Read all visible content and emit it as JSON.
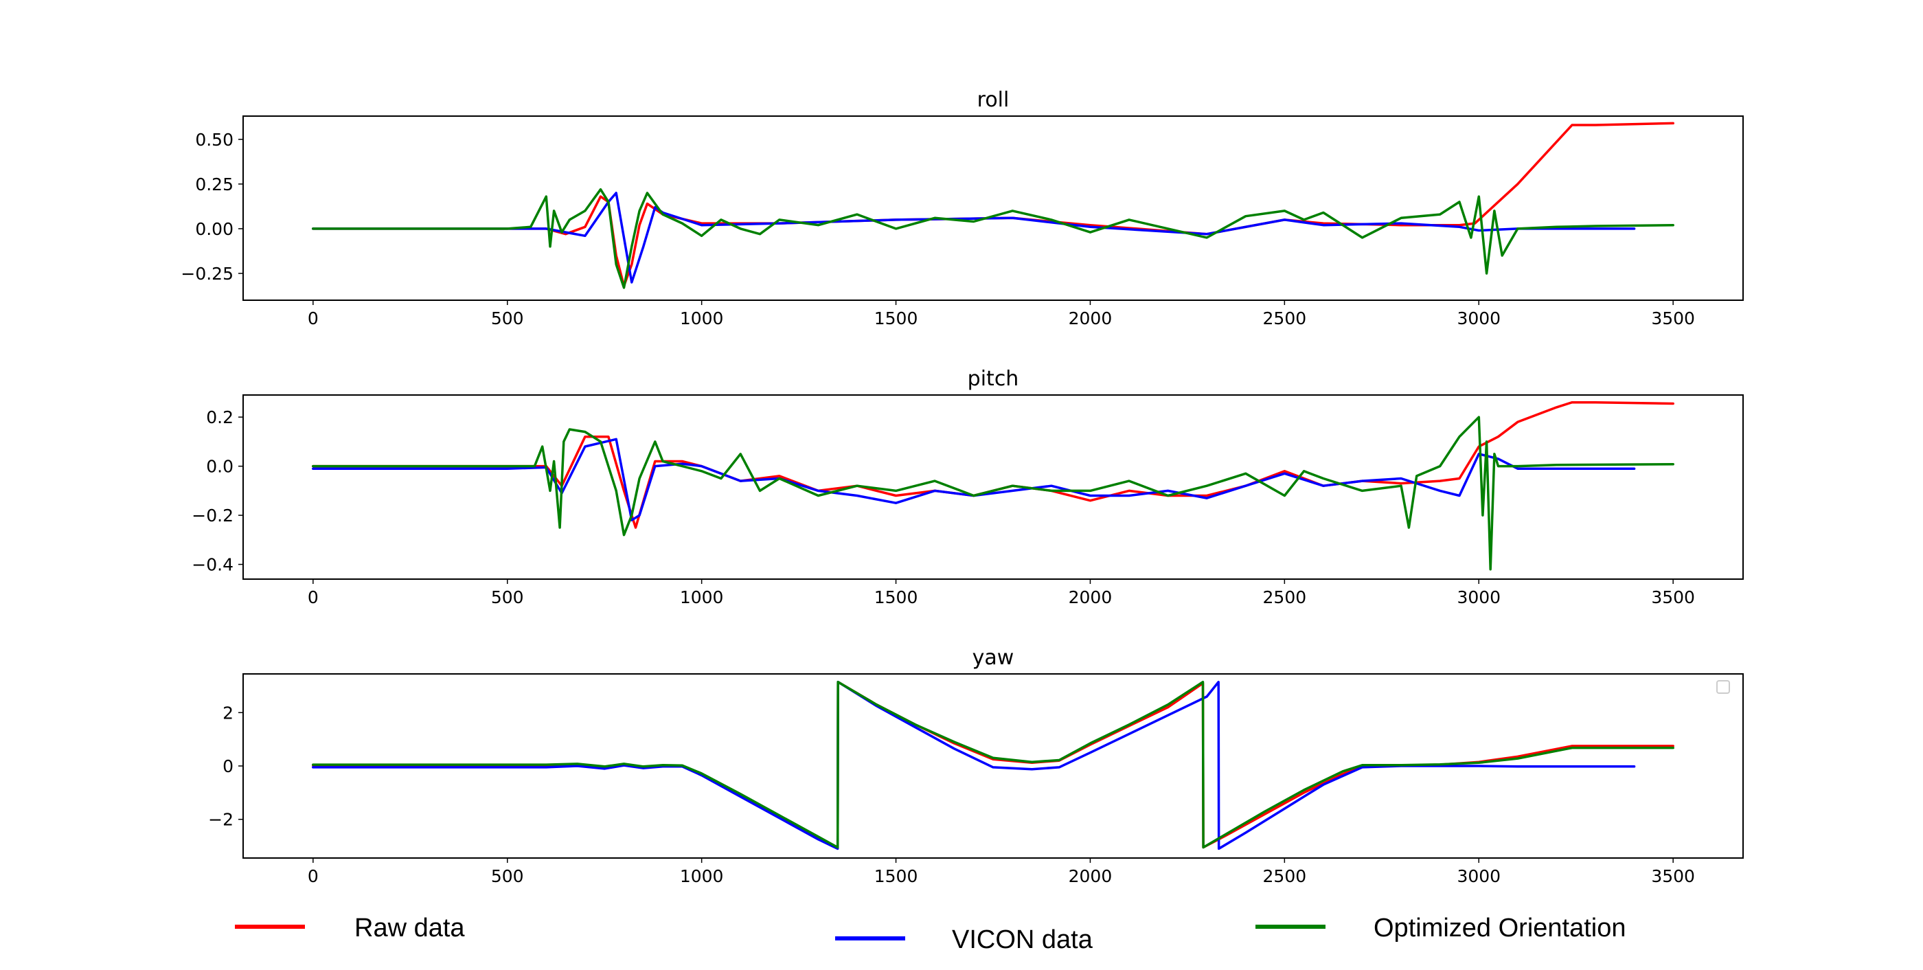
{
  "chart_data": [
    {
      "type": "line",
      "title": "roll",
      "xlim": [
        -180,
        3680
      ],
      "ylim": [
        -0.4,
        0.63
      ],
      "xticks": [
        0,
        500,
        1000,
        1500,
        2000,
        2500,
        3000,
        3500
      ],
      "yticks": [
        0.5,
        0.25,
        0.0,
        -0.25
      ],
      "ytick_labels": [
        "0.50",
        "0.25",
        "0.00",
        "−0.25"
      ],
      "series": [
        {
          "name": "Raw data",
          "color": "#ff0000",
          "x": [
            0,
            500,
            600,
            650,
            700,
            740,
            760,
            780,
            800,
            820,
            840,
            860,
            900,
            1000,
            1200,
            1500,
            1800,
            2000,
            2300,
            2500,
            2600,
            2800,
            2950,
            2990,
            3100,
            3240,
            3300,
            3500
          ],
          "y": [
            0,
            0,
            0,
            -0.03,
            0.01,
            0.18,
            0.15,
            -0.15,
            -0.32,
            -0.2,
            0.02,
            0.14,
            0.08,
            0.03,
            0.03,
            0.05,
            0.06,
            0.02,
            -0.03,
            0.05,
            0.03,
            0.02,
            0.02,
            0.03,
            0.25,
            0.58,
            0.58,
            0.59
          ]
        },
        {
          "name": "VICON data",
          "color": "#0000ff",
          "x": [
            0,
            500,
            600,
            650,
            700,
            760,
            780,
            800,
            820,
            850,
            880,
            900,
            1000,
            1200,
            1500,
            1800,
            2000,
            2300,
            2500,
            2600,
            2800,
            2950,
            3000,
            3100,
            3200,
            3400
          ],
          "y": [
            0,
            0,
            0,
            -0.02,
            -0.04,
            0.15,
            0.2,
            -0.05,
            -0.3,
            -0.1,
            0.12,
            0.09,
            0.02,
            0.03,
            0.05,
            0.06,
            0.01,
            -0.03,
            0.05,
            0.02,
            0.03,
            0.01,
            -0.01,
            0.0,
            0.0,
            0.0
          ]
        },
        {
          "name": "Optimized Orientation",
          "color": "#008000",
          "x": [
            0,
            500,
            560,
            600,
            610,
            620,
            640,
            660,
            700,
            740,
            760,
            780,
            800,
            820,
            840,
            860,
            900,
            950,
            1000,
            1050,
            1100,
            1150,
            1200,
            1300,
            1400,
            1500,
            1600,
            1700,
            1800,
            1900,
            2000,
            2100,
            2200,
            2300,
            2400,
            2500,
            2550,
            2600,
            2700,
            2800,
            2900,
            2950,
            2980,
            3000,
            3020,
            3040,
            3060,
            3100,
            3200,
            3300,
            3500
          ],
          "y": [
            0,
            0,
            0.01,
            0.18,
            -0.1,
            0.1,
            -0.02,
            0.05,
            0.1,
            0.22,
            0.15,
            -0.2,
            -0.33,
            -0.1,
            0.1,
            0.2,
            0.08,
            0.03,
            -0.04,
            0.05,
            0.0,
            -0.03,
            0.05,
            0.02,
            0.08,
            0.0,
            0.06,
            0.04,
            0.1,
            0.05,
            -0.02,
            0.05,
            0.0,
            -0.05,
            0.07,
            0.1,
            0.05,
            0.09,
            -0.05,
            0.06,
            0.08,
            0.15,
            -0.05,
            0.18,
            -0.25,
            0.1,
            -0.15,
            0.0,
            0.01,
            0.015,
            0.02
          ]
        }
      ]
    },
    {
      "type": "line",
      "title": "pitch",
      "xlim": [
        -180,
        3680
      ],
      "ylim": [
        -0.46,
        0.29
      ],
      "xticks": [
        0,
        500,
        1000,
        1500,
        2000,
        2500,
        3000,
        3500
      ],
      "yticks": [
        0.2,
        0.0,
        -0.2,
        -0.4
      ],
      "ytick_labels": [
        "0.2",
        "0.0",
        "−0.2",
        "−0.4"
      ],
      "series": [
        {
          "name": "Raw data",
          "color": "#ff0000",
          "x": [
            0,
            500,
            600,
            640,
            700,
            760,
            800,
            830,
            880,
            950,
            1000,
            1100,
            1200,
            1300,
            1400,
            1500,
            1600,
            1700,
            1800,
            1900,
            2000,
            2100,
            2200,
            2300,
            2400,
            2500,
            2600,
            2700,
            2800,
            2900,
            2950,
            3000,
            3050,
            3100,
            3200,
            3240,
            3300,
            3500
          ],
          "y": [
            0,
            0,
            0,
            -0.08,
            0.12,
            0.12,
            -0.1,
            -0.25,
            0.02,
            0.02,
            0.0,
            -0.06,
            -0.04,
            -0.1,
            -0.08,
            -0.12,
            -0.1,
            -0.12,
            -0.08,
            -0.1,
            -0.14,
            -0.1,
            -0.12,
            -0.12,
            -0.08,
            -0.02,
            -0.08,
            -0.06,
            -0.07,
            -0.06,
            -0.05,
            0.08,
            0.12,
            0.18,
            0.24,
            0.26,
            0.26,
            0.255
          ]
        },
        {
          "name": "VICON data",
          "color": "#0000ff",
          "x": [
            0,
            500,
            600,
            640,
            700,
            780,
            820,
            840,
            880,
            950,
            1000,
            1100,
            1200,
            1300,
            1400,
            1500,
            1600,
            1700,
            1800,
            1900,
            2000,
            2100,
            2200,
            2300,
            2400,
            2500,
            2600,
            2700,
            2800,
            2900,
            2950,
            3000,
            3050,
            3100,
            3200,
            3400
          ],
          "y": [
            -0.01,
            -0.01,
            -0.005,
            -0.11,
            0.08,
            0.11,
            -0.22,
            -0.2,
            0.0,
            0.01,
            0.0,
            -0.06,
            -0.05,
            -0.1,
            -0.12,
            -0.15,
            -0.1,
            -0.12,
            -0.1,
            -0.08,
            -0.12,
            -0.12,
            -0.1,
            -0.13,
            -0.08,
            -0.03,
            -0.08,
            -0.06,
            -0.05,
            -0.1,
            -0.12,
            0.05,
            0.03,
            -0.01,
            -0.01,
            -0.01
          ]
        },
        {
          "name": "Optimized Orientation",
          "color": "#008000",
          "x": [
            0,
            500,
            570,
            590,
            610,
            620,
            635,
            645,
            660,
            700,
            740,
            780,
            800,
            820,
            840,
            880,
            900,
            950,
            1000,
            1050,
            1100,
            1150,
            1200,
            1300,
            1400,
            1500,
            1600,
            1700,
            1800,
            1900,
            2000,
            2100,
            2200,
            2300,
            2400,
            2500,
            2550,
            2600,
            2700,
            2800,
            2820,
            2840,
            2900,
            2950,
            3000,
            3010,
            3020,
            3030,
            3040,
            3050,
            3100,
            3200,
            3500
          ],
          "y": [
            0,
            0,
            0,
            0.08,
            -0.1,
            0.02,
            -0.25,
            0.1,
            0.15,
            0.14,
            0.1,
            -0.1,
            -0.28,
            -0.2,
            -0.05,
            0.1,
            0.02,
            0.0,
            -0.02,
            -0.05,
            0.05,
            -0.1,
            -0.05,
            -0.12,
            -0.08,
            -0.1,
            -0.06,
            -0.12,
            -0.08,
            -0.1,
            -0.1,
            -0.06,
            -0.12,
            -0.08,
            -0.03,
            -0.12,
            -0.02,
            -0.05,
            -0.1,
            -0.08,
            -0.25,
            -0.04,
            0.0,
            0.12,
            0.2,
            -0.2,
            0.1,
            -0.42,
            0.05,
            0.0,
            0.0,
            0.005,
            0.008
          ]
        }
      ]
    },
    {
      "type": "line",
      "title": "yaw",
      "xlim": [
        -180,
        3680
      ],
      "ylim": [
        -3.45,
        3.45
      ],
      "xticks": [
        0,
        500,
        1000,
        1500,
        2000,
        2500,
        3000,
        3500
      ],
      "yticks": [
        2,
        0,
        -2
      ],
      "ytick_labels": [
        "2",
        "0",
        "−2"
      ],
      "series": [
        {
          "name": "Raw data",
          "color": "#ff0000",
          "x": [
            0,
            600,
            680,
            750,
            800,
            850,
            900,
            950,
            1000,
            1100,
            1200,
            1300,
            1350,
            1351,
            1450,
            1550,
            1650,
            1750,
            1850,
            1920,
            2000,
            2100,
            2200,
            2290,
            2291,
            2350,
            2450,
            2550,
            2650,
            2700,
            2800,
            2900,
            3000,
            3100,
            3240,
            3500
          ],
          "y": [
            0.02,
            0.02,
            0.06,
            -0.05,
            0.05,
            -0.05,
            0.0,
            0.0,
            -0.3,
            -1.1,
            -1.9,
            -2.7,
            -3.05,
            3.15,
            2.3,
            1.55,
            0.85,
            0.25,
            0.12,
            0.2,
            0.8,
            1.5,
            2.2,
            3.1,
            -3.05,
            -2.6,
            -1.8,
            -1.0,
            -0.3,
            0.0,
            0.02,
            0.05,
            0.15,
            0.35,
            0.75,
            0.75
          ]
        },
        {
          "name": "VICON data",
          "color": "#0000ff",
          "x": [
            0,
            600,
            680,
            750,
            800,
            850,
            900,
            950,
            1000,
            1100,
            1200,
            1300,
            1350,
            1351,
            1450,
            1550,
            1650,
            1750,
            1850,
            1920,
            2000,
            2100,
            2200,
            2300,
            2330,
            2331,
            2400,
            2500,
            2600,
            2700,
            2800,
            3000,
            3100,
            3400
          ],
          "y": [
            -0.05,
            -0.05,
            0.0,
            -0.1,
            0.02,
            -0.08,
            -0.02,
            -0.02,
            -0.35,
            -1.15,
            -1.95,
            -2.75,
            -3.1,
            3.15,
            2.25,
            1.45,
            0.65,
            -0.05,
            -0.12,
            -0.05,
            0.5,
            1.2,
            1.9,
            2.6,
            3.15,
            -3.1,
            -2.5,
            -1.6,
            -0.7,
            -0.05,
            0.0,
            0.0,
            -0.02,
            -0.02
          ]
        },
        {
          "name": "Optimized Orientation",
          "color": "#008000",
          "x": [
            0,
            600,
            680,
            750,
            800,
            850,
            900,
            950,
            1000,
            1100,
            1200,
            1300,
            1350,
            1351,
            1450,
            1550,
            1650,
            1750,
            1850,
            1920,
            2000,
            2100,
            2200,
            2290,
            2291,
            2350,
            2450,
            2550,
            2650,
            2700,
            2800,
            2900,
            3000,
            3100,
            3240,
            3500
          ],
          "y": [
            0.05,
            0.05,
            0.08,
            -0.02,
            0.08,
            -0.02,
            0.03,
            0.02,
            -0.28,
            -1.05,
            -1.85,
            -2.65,
            -3.05,
            3.15,
            2.3,
            1.55,
            0.9,
            0.3,
            0.15,
            0.22,
            0.85,
            1.55,
            2.3,
            3.15,
            -3.05,
            -2.55,
            -1.7,
            -0.9,
            -0.2,
            0.03,
            0.03,
            0.06,
            0.12,
            0.28,
            0.68,
            0.68
          ]
        }
      ]
    }
  ],
  "legend": {
    "items": [
      {
        "label": "Raw data",
        "color": "#ff0000"
      },
      {
        "label": "VICON data",
        "color": "#0000ff"
      },
      {
        "label": "Optimized Orientation",
        "color": "#008000"
      }
    ]
  }
}
